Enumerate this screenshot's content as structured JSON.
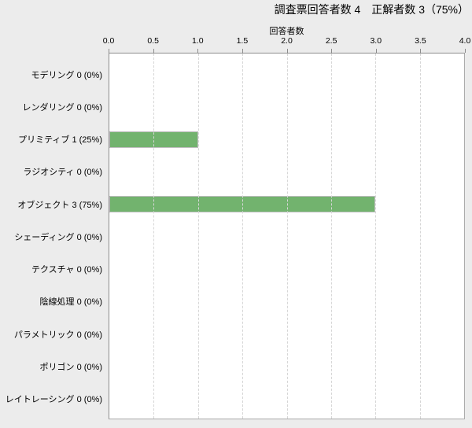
{
  "header": {
    "title": "調査票回答者数 4　正解者数 3（75%）"
  },
  "colors": {
    "background": "#ececec",
    "plot_background": "#ffffff",
    "bar_fill": "#72b36e",
    "bar_border": "#bdbdbd",
    "axis_line": "#8c8c8c",
    "gridline": "#d6d6d6"
  },
  "chart_data": {
    "type": "bar",
    "orientation": "horizontal",
    "title": "調査票回答者数 4　正解者数 3（75%）",
    "xlabel": "回答者数",
    "xlim": [
      0,
      4
    ],
    "xtick_values": [
      0,
      0.5,
      1,
      1.5,
      2,
      2.5,
      3,
      3.5,
      4
    ],
    "xtick_labels": [
      "0.0",
      "0.5",
      "1.0",
      "1.5",
      "2.0",
      "2.5",
      "3.0",
      "3.5",
      "4.0"
    ],
    "grid": "vertical-dashed",
    "legend": "none",
    "categories": [
      "モデリング 0 (0%)",
      "レンダリング 0 (0%)",
      "プリミティブ 1 (25%)",
      "ラジオシティ 0 (0%)",
      "オブジェクト 3 (75%)",
      "シェーディング 0 (0%)",
      "テクスチャ 0 (0%)",
      "陰線処理 0 (0%)",
      "パラメトリック 0 (0%)",
      "ポリゴン 0 (0%)",
      "レイトレーシング 0 (0%)"
    ],
    "category_names": [
      "モデリング",
      "レンダリング",
      "プリミティブ",
      "ラジオシティ",
      "オブジェクト",
      "シェーディング",
      "テクスチャ",
      "陰線処理",
      "パラメトリック",
      "ポリゴン",
      "レイトレーシング"
    ],
    "values": [
      0,
      0,
      1,
      0,
      3,
      0,
      0,
      0,
      0,
      0,
      0
    ],
    "percentages": [
      "0%",
      "0%",
      "25%",
      "0%",
      "75%",
      "0%",
      "0%",
      "0%",
      "0%",
      "0%",
      "0%"
    ]
  }
}
